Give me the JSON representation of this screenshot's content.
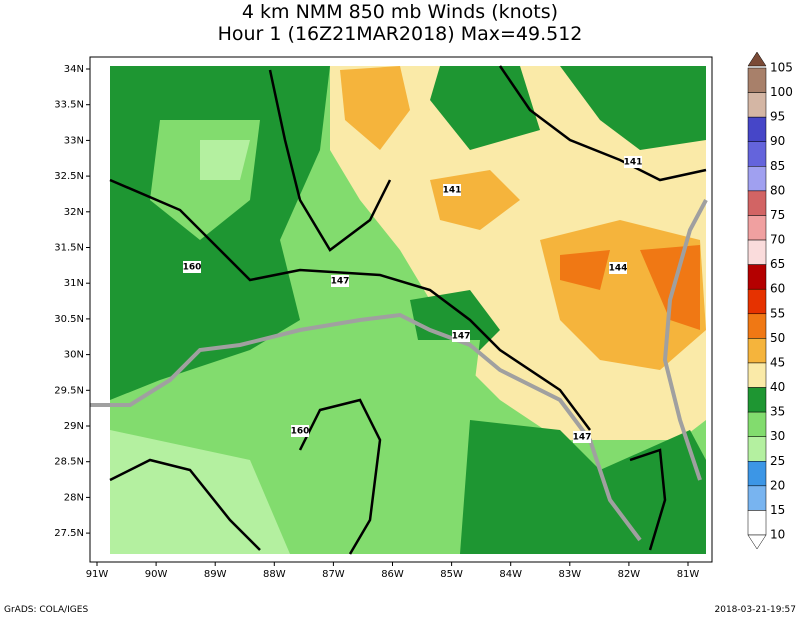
{
  "title": "4 km NMM 850 mb Winds (knots)",
  "subtitle": "Hour 1 (16Z21MAR2018) Max=49.512",
  "lat_labels": [
    "34N",
    "33.5N",
    "33N",
    "32.5N",
    "32N",
    "31.5N",
    "31N",
    "30.5N",
    "30N",
    "29.5N",
    "29N",
    "28.5N",
    "28N",
    "27.5N"
  ],
  "lon_labels": [
    "91W",
    "90W",
    "89W",
    "88W",
    "87W",
    "86W",
    "85W",
    "84W",
    "83W",
    "82W",
    "81W"
  ],
  "colorbar": {
    "levels": [
      105,
      100,
      95,
      90,
      85,
      80,
      75,
      70,
      65,
      60,
      55,
      50,
      45,
      40,
      35,
      30,
      25,
      20,
      15,
      10
    ],
    "colors": [
      "#7a4a36",
      "#a8806a",
      "#d4b6a4",
      "#4646c8",
      "#6464dc",
      "#a0a0f0",
      "#d26464",
      "#f0a0a0",
      "#fadcdc",
      "#b40000",
      "#e63200",
      "#f07814",
      "#f5b43c",
      "#faeaa8",
      "#1e9632",
      "#82dc6e",
      "#b4f0a0",
      "#3c96e6",
      "#78b4f0",
      "#ffffff"
    ]
  },
  "contour_labels": [
    "141",
    "160",
    "147",
    "147",
    "160",
    "147",
    "141",
    "144"
  ],
  "footer_left": "GrADS: COLA/IGES",
  "footer_right": "2018-03-21-19:57"
}
